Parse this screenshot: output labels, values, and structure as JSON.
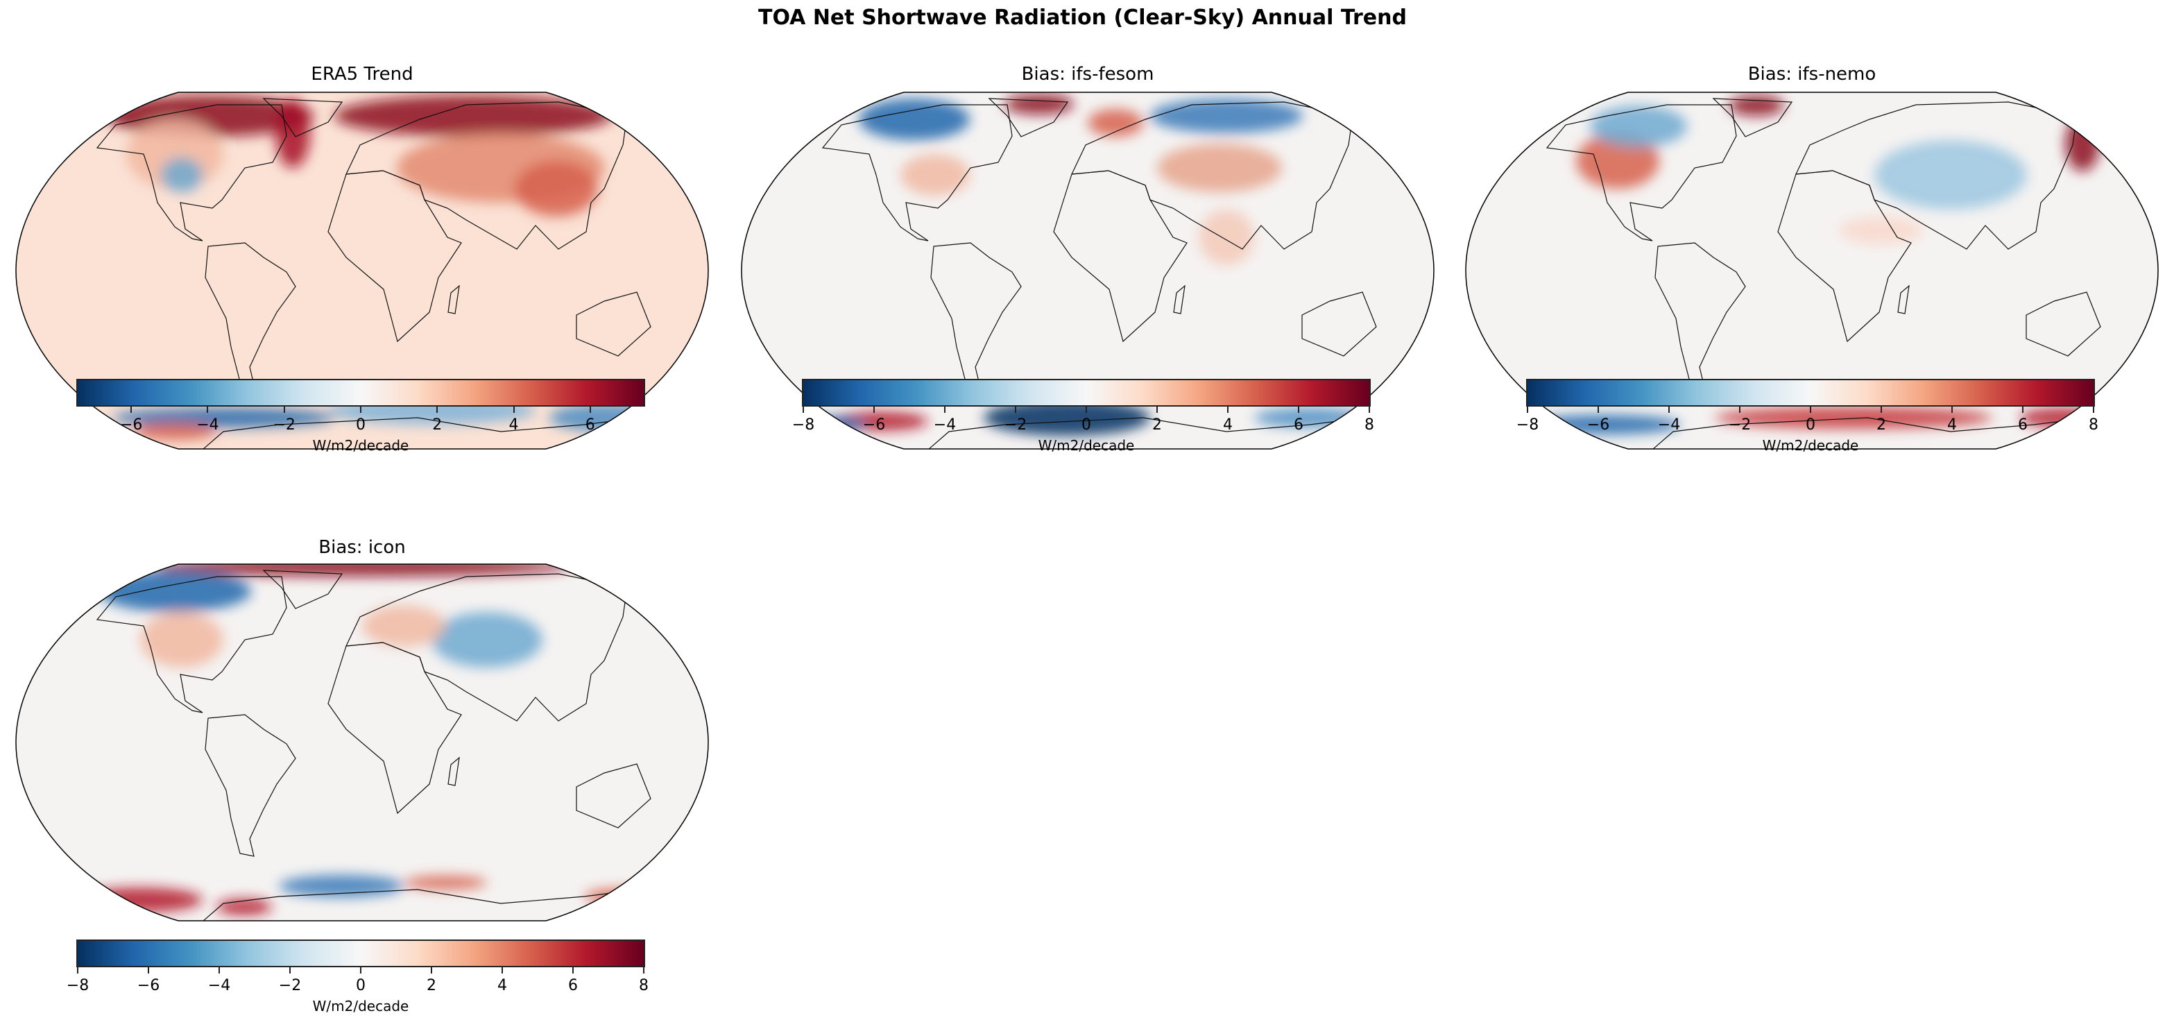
{
  "figure": {
    "title": "TOA Net Shortwave Radiation (Clear-Sky) Annual Trend"
  },
  "panels": [
    {
      "title": "ERA5 Trend",
      "background": "#fbe2d5",
      "colorbar": {
        "label": "W/m2/decade",
        "colormap": "RdBu_r",
        "vmin": -7.4,
        "vmax": 7.4,
        "tick_values": [
          -6,
          -4,
          -2,
          0,
          2,
          4,
          6
        ],
        "tick_labels": [
          "−6",
          "−4",
          "−2",
          "0",
          "2",
          "4",
          "6"
        ]
      }
    },
    {
      "title": "Bias: ifs-fesom",
      "background": "#f5f3f2",
      "colorbar": {
        "label": "W/m2/decade",
        "colormap": "RdBu_r",
        "vmin": -8,
        "vmax": 8,
        "tick_values": [
          -8,
          -6,
          -4,
          -2,
          0,
          2,
          4,
          6,
          8
        ],
        "tick_labels": [
          "−8",
          "−6",
          "−4",
          "−2",
          "0",
          "2",
          "4",
          "6",
          "8"
        ]
      }
    },
    {
      "title": "Bias: ifs-nemo",
      "background": "#f5f3f2",
      "colorbar": {
        "label": "W/m2/decade",
        "colormap": "RdBu_r",
        "vmin": -8,
        "vmax": 8,
        "tick_values": [
          -8,
          -6,
          -4,
          -2,
          0,
          2,
          4,
          6,
          8
        ],
        "tick_labels": [
          "−8",
          "−6",
          "−4",
          "−2",
          "0",
          "2",
          "4",
          "6",
          "8"
        ]
      }
    },
    {
      "title": "Bias: icon",
      "background": "#f5f3f2",
      "colorbar": {
        "label": "W/m2/decade",
        "colormap": "RdBu_r",
        "vmin": -8,
        "vmax": 8,
        "tick_values": [
          -8,
          -6,
          -4,
          -2,
          0,
          2,
          4,
          6,
          8
        ],
        "tick_labels": [
          "−8",
          "−6",
          "−4",
          "−2",
          "0",
          "2",
          "4",
          "6",
          "8"
        ]
      }
    }
  ]
}
